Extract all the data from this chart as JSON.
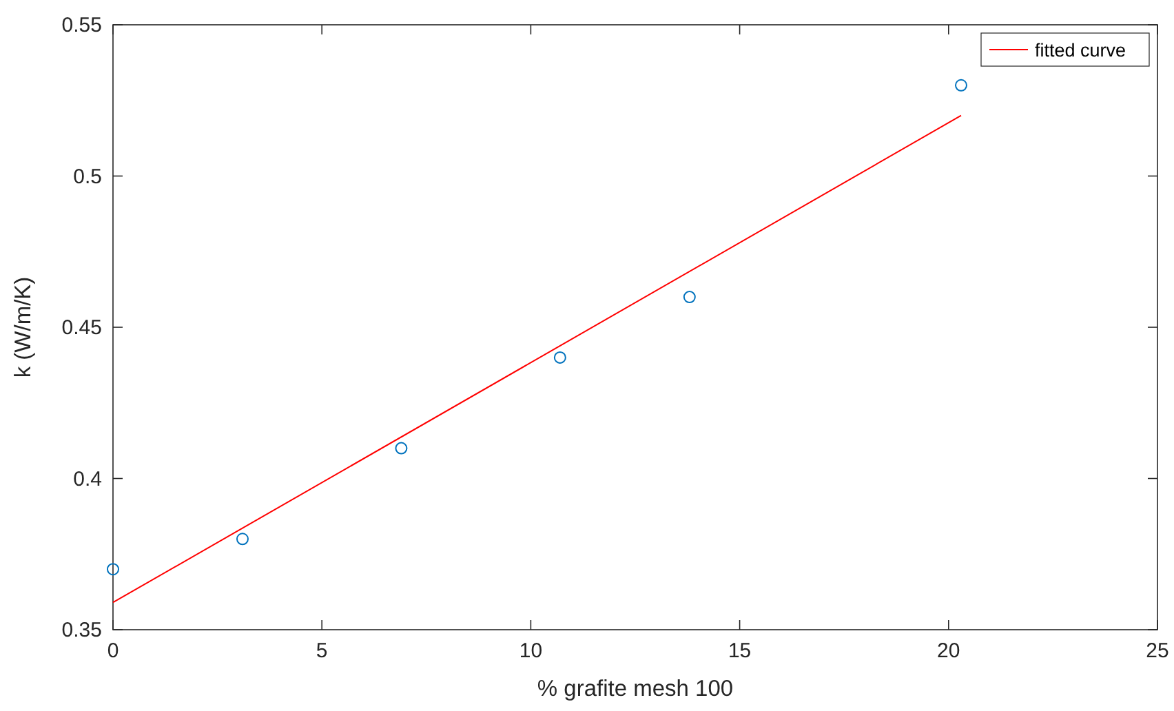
{
  "chart_data": {
    "type": "scatter",
    "xlabel": "% grafite mesh 100",
    "ylabel": "k (W/m/K)",
    "xlim": [
      0,
      25
    ],
    "xticks": [
      0,
      5,
      10,
      15,
      20,
      25
    ],
    "ylim": [
      0.35,
      0.55
    ],
    "yticks": [
      0.35,
      0.4,
      0.45,
      0.5,
      0.55
    ],
    "grid": false,
    "legend": "top right",
    "series": [
      {
        "marker": "circle",
        "color": "#0072bd",
        "x": [
          0,
          3.1,
          6.9,
          10.7,
          13.8,
          20.3
        ],
        "values": [
          0.37,
          0.38,
          0.41,
          0.44,
          0.46,
          0.53
        ]
      },
      {
        "type": "line",
        "name": "fitted curve",
        "color": "#ff0000",
        "x": [
          0,
          20.3
        ],
        "values": [
          0.359,
          0.52
        ],
        "line_style": "solid"
      }
    ]
  }
}
